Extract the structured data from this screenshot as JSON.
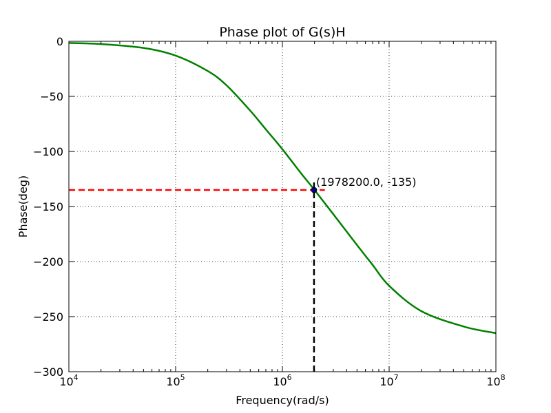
{
  "chart_data": {
    "type": "line",
    "title": "Phase plot of G(s)H",
    "xlabel": "Frequency(rad/s)",
    "ylabel": "Phase(deg)",
    "xscale": "log",
    "xlim": [
      10000,
      100000000
    ],
    "ylim": [
      -300,
      0
    ],
    "grid": true,
    "x_ticks": [
      {
        "base": "10",
        "exp": "4"
      },
      {
        "base": "10",
        "exp": "5"
      },
      {
        "base": "10",
        "exp": "6"
      },
      {
        "base": "10",
        "exp": "7"
      },
      {
        "base": "10",
        "exp": "8"
      }
    ],
    "y_ticks": [
      "0",
      "−50",
      "−100",
      "−150",
      "−200",
      "−250",
      "−300"
    ],
    "series": [
      {
        "color": "#008000",
        "x": [
          10000,
          20000,
          50000,
          100000,
          200000,
          300000,
          500000,
          700000,
          1000000,
          1500000,
          2000000,
          3000000,
          5000000,
          7000000,
          10000000,
          20000000,
          50000000,
          100000000
        ],
        "y": [
          -1.5,
          -2.5,
          -6,
          -13,
          -27,
          -40,
          -63,
          -80,
          -98,
          -120,
          -135,
          -157,
          -185,
          -203,
          -222,
          -245,
          -259,
          -265
        ]
      }
    ],
    "marker": {
      "x": 1978200,
      "y": -135,
      "color": "#00008b"
    },
    "hline": {
      "y": -135,
      "x_end": 2500000,
      "color": "#ff0000",
      "style": "dashed"
    },
    "vline": {
      "x": 1978200,
      "y_top": -125,
      "color": "#000000",
      "style": "dashed"
    },
    "annotation": {
      "text": "(1978200.0, -135)",
      "x": 1978200,
      "y": -135
    }
  }
}
